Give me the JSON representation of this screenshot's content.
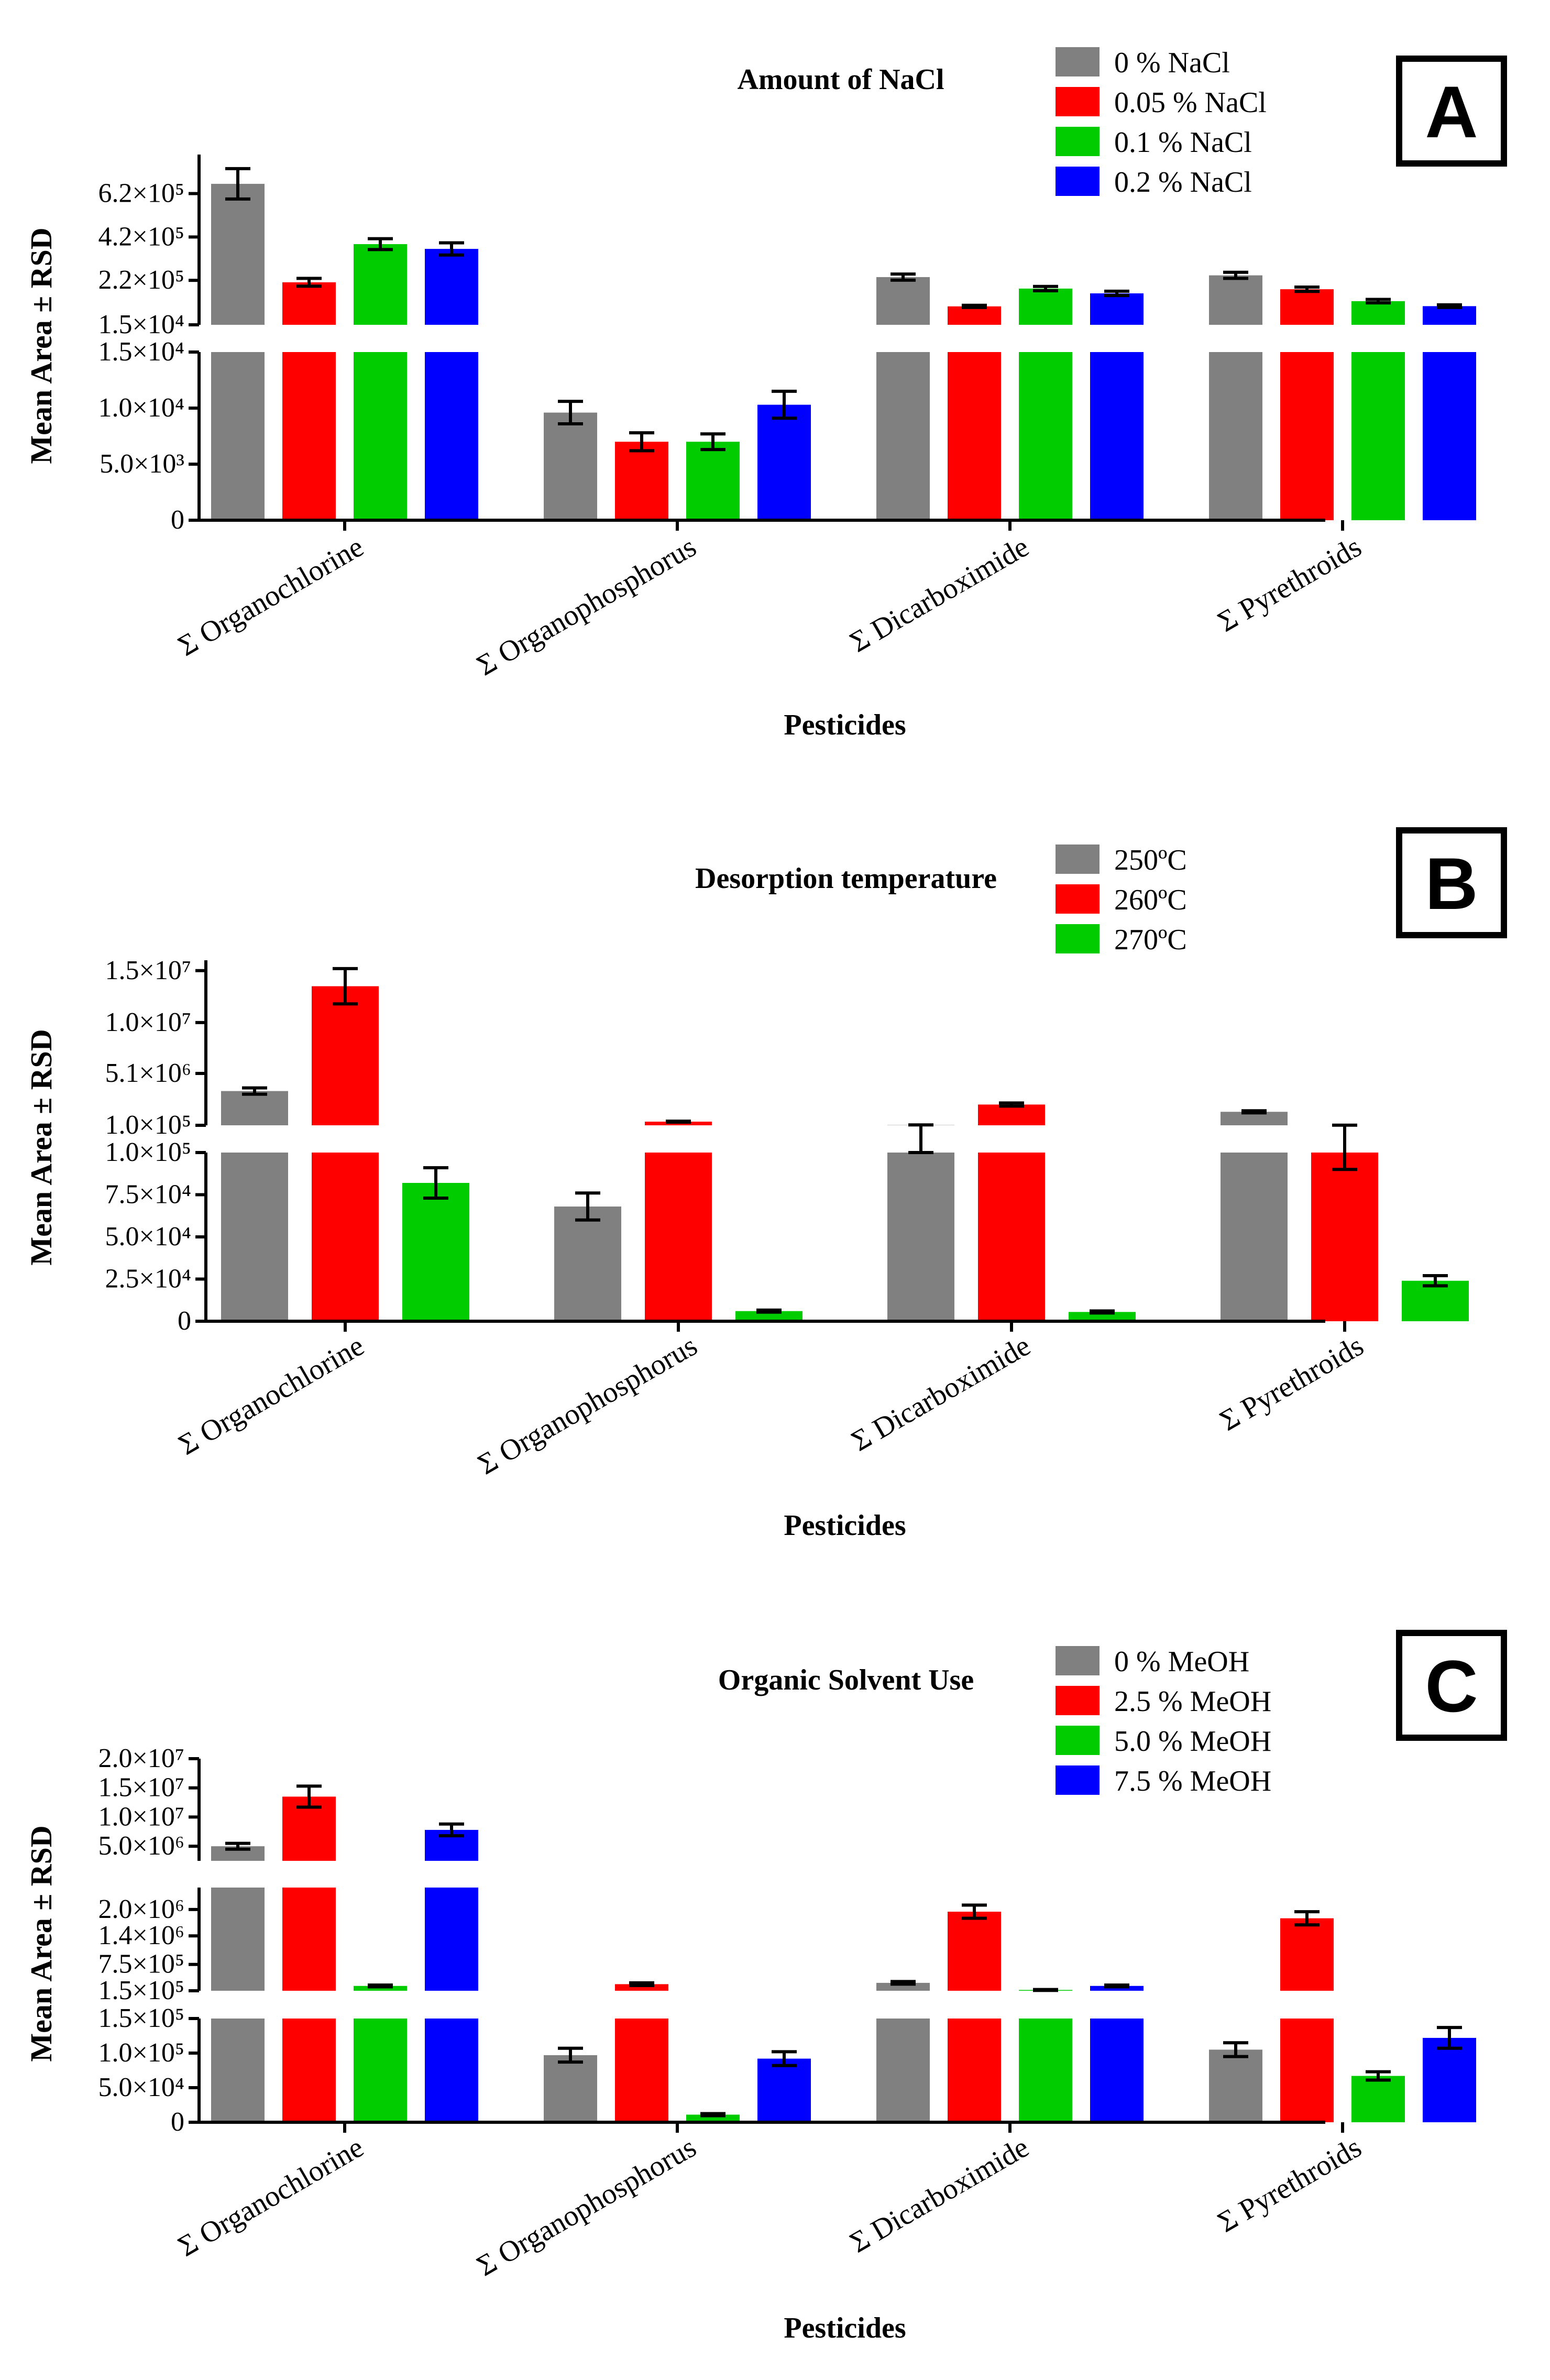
{
  "chart_data": [
    {
      "panel_label": "A",
      "type": "bar",
      "title": "Amount of NaCl",
      "xlabel": "Pesticides",
      "ylabel": "Mean Area ± RSD",
      "categories": [
        "Σ Organochlorine",
        "Σ Organophosphorus",
        "Σ Dicarboximide",
        "Σ Pyrethroids"
      ],
      "series": [
        {
          "name": "0 % NaCl",
          "color": "#808080",
          "values": [
            665000,
            9600,
            235000,
            243000
          ],
          "errors": [
            70000,
            1000,
            14000,
            14000
          ]
        },
        {
          "name": "0.05 % NaCl",
          "color": "#ff0000",
          "values": [
            211000,
            7000,
            100000,
            179000
          ],
          "errors": [
            18000,
            800,
            5000,
            10000
          ]
        },
        {
          "name": "0.1 % NaCl",
          "color": "#00cc00",
          "values": [
            387000,
            7000,
            182000,
            124000
          ],
          "errors": [
            25000,
            700,
            10000,
            8000
          ]
        },
        {
          "name": "0.2 % NaCl",
          "color": "#0000ff",
          "values": [
            365000,
            10300,
            160000,
            101000
          ],
          "errors": [
            28000,
            1200,
            10000,
            6000
          ]
        }
      ],
      "y_segments": [
        {
          "range": [
            0,
            15000
          ],
          "ticks": [
            0,
            5000,
            10000,
            15000
          ],
          "tick_labels": [
            "0",
            "5.0×10³",
            "1.0×10⁴",
            "1.5×10⁴"
          ]
        },
        {
          "range": [
            15000,
            800000
          ],
          "ticks": [
            15000,
            220000,
            420000,
            620000
          ],
          "tick_labels": [
            "1.5×10⁴",
            "2.2×10⁵",
            "4.2×10⁵",
            "6.2×10⁵"
          ]
        }
      ]
    },
    {
      "panel_label": "B",
      "type": "bar",
      "title": "Desorption temperature",
      "xlabel": "Pesticides",
      "ylabel": "Mean Area ± RSD",
      "categories": [
        "Σ Organochlorine",
        "Σ Organophosphorus",
        "Σ Dicarboximide",
        "Σ Pyrethroids"
      ],
      "series": [
        {
          "name": "250ºC",
          "color": "#808080",
          "values": [
            3400000,
            68000,
            120000,
            1400000
          ],
          "errors": [
            300000,
            8000,
            20000,
            100000
          ]
        },
        {
          "name": "260ºC",
          "color": "#ff0000",
          "values": [
            13500000,
            450000,
            2100000,
            100000
          ],
          "errors": [
            1700000,
            50000,
            150000,
            10000
          ]
        },
        {
          "name": "270ºC",
          "color": "#00cc00",
          "values": [
            82000,
            6000,
            5500,
            24000
          ],
          "errors": [
            9000,
            600,
            600,
            3000
          ]
        }
      ],
      "y_segments": [
        {
          "range": [
            0,
            100000
          ],
          "ticks": [
            0,
            25000,
            50000,
            75000,
            100000
          ],
          "tick_labels": [
            "0",
            "2.5×10⁴",
            "5.0×10⁴",
            "7.5×10⁴",
            "1.0×10⁵"
          ]
        },
        {
          "range": [
            100000,
            16000000
          ],
          "ticks": [
            100000,
            5100000,
            10000000,
            15000000
          ],
          "tick_labels": [
            "1.0×10⁵",
            "5.1×10⁶",
            "1.0×10⁷",
            "1.5×10⁷"
          ]
        }
      ]
    },
    {
      "panel_label": "C",
      "type": "bar",
      "title": "Organic Solvent Use",
      "xlabel": "Pesticides",
      "ylabel": "Mean Area ± RSD",
      "categories": [
        "Σ Organochlorine",
        "Σ Organophosphorus",
        "Σ Dicarboximide",
        "Σ Pyrethroids"
      ],
      "series": [
        {
          "name": "0 % MeOH",
          "color": "#808080",
          "values": [
            5000000,
            97000,
            330000,
            105000
          ],
          "errors": [
            500000,
            10000,
            30000,
            10000
          ]
        },
        {
          "name": "2.5 % MeOH",
          "color": "#ff0000",
          "values": [
            13500000,
            300000,
            1950000,
            1800000
          ],
          "errors": [
            1800000,
            30000,
            150000,
            150000
          ]
        },
        {
          "name": "5.0 % MeOH",
          "color": "#00cc00",
          "values": [
            260000,
            11000,
            168000,
            67000
          ],
          "errors": [
            20000,
            1500,
            10000,
            6000
          ]
        },
        {
          "name": "7.5 % MeOH",
          "color": "#0000ff",
          "values": [
            7800000,
            92000,
            260000,
            122000
          ],
          "errors": [
            1000000,
            10000,
            20000,
            15000
          ]
        }
      ],
      "y_segments": [
        {
          "range": [
            0,
            150000
          ],
          "ticks": [
            0,
            50000,
            100000,
            150000
          ],
          "tick_labels": [
            "0",
            "5.0×10⁴",
            "1.0×10⁵",
            "1.5×10⁵"
          ]
        },
        {
          "range": [
            150000,
            2500000
          ],
          "ticks": [
            150000,
            750000,
            1400000,
            2000000
          ],
          "tick_labels": [
            "1.5×10⁵",
            "7.5×10⁵",
            "1.4×10⁶",
            "2.0×10⁶"
          ]
        },
        {
          "range": [
            2500000,
            20000000
          ],
          "ticks": [
            5000000,
            10000000,
            15000000,
            20000000
          ],
          "tick_labels": [
            "5.0×10⁶",
            "1.0×10⁷",
            "1.5×10⁷",
            "2.0×10⁷"
          ]
        }
      ]
    }
  ]
}
